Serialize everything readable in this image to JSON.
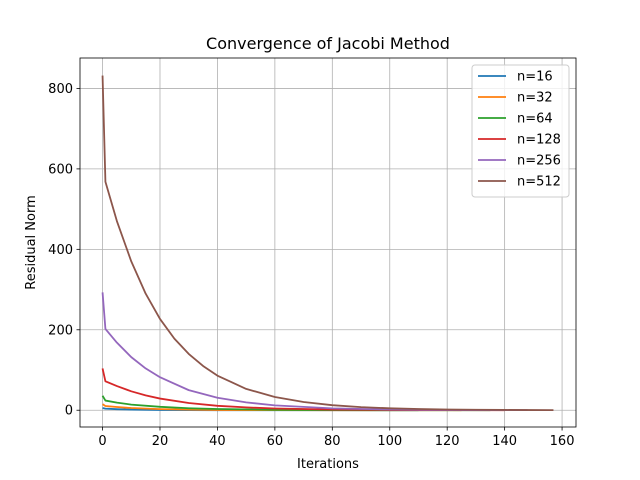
{
  "chart_data": {
    "type": "line",
    "title": "Convergence of Jacobi Method",
    "xlabel": "Iterations",
    "ylabel": "Residual Norm",
    "xlim": [
      -7.85,
      164.85
    ],
    "ylim": [
      -41.7,
      875.7
    ],
    "xticks": [
      0,
      20,
      40,
      60,
      80,
      100,
      120,
      140,
      160
    ],
    "yticks": [
      0,
      200,
      400,
      600,
      800
    ],
    "grid": true,
    "legend_position": "top-right",
    "series": [
      {
        "name": "n=16",
        "color": "#1f77b4",
        "x": [
          0,
          1,
          5,
          10,
          20,
          30,
          40,
          60,
          80,
          100,
          110
        ],
        "y": [
          5.5,
          4.0,
          2.6,
          1.6,
          0.6,
          0.25,
          0.1,
          0.02,
          0.005,
          0.001,
          0.0005
        ]
      },
      {
        "name": "n=32",
        "color": "#ff7f0e",
        "x": [
          0,
          1,
          5,
          10,
          20,
          30,
          40,
          60,
          80,
          100,
          120,
          125
        ],
        "y": [
          15,
          10.5,
          8.0,
          5.5,
          2.8,
          1.4,
          0.7,
          0.18,
          0.05,
          0.012,
          0.003,
          0.002
        ]
      },
      {
        "name": "n=64",
        "color": "#2ca02c",
        "x": [
          0,
          1,
          5,
          10,
          20,
          30,
          40,
          60,
          80,
          100,
          120,
          135
        ],
        "y": [
          36,
          24,
          19,
          14,
          8.5,
          5.0,
          3.0,
          1.05,
          0.36,
          0.12,
          0.04,
          0.02
        ]
      },
      {
        "name": "n=128",
        "color": "#d62728",
        "x": [
          0,
          1,
          5,
          10,
          15,
          20,
          30,
          40,
          50,
          60,
          80,
          100,
          120,
          140
        ],
        "y": [
          104,
          72,
          60,
          47,
          37,
          29,
          18,
          11,
          7,
          4.3,
          1.7,
          0.65,
          0.25,
          0.1
        ]
      },
      {
        "name": "n=256",
        "color": "#9467bd",
        "x": [
          0,
          1,
          5,
          10,
          15,
          20,
          30,
          40,
          50,
          60,
          80,
          100,
          120,
          140,
          148
        ],
        "y": [
          293,
          202,
          168,
          132,
          104,
          82,
          50,
          31,
          19.5,
          12,
          4.6,
          1.8,
          0.7,
          0.27,
          0.2
        ]
      },
      {
        "name": "n=512",
        "color": "#8c564b",
        "x": [
          0,
          1,
          5,
          10,
          15,
          20,
          25,
          30,
          35,
          40,
          50,
          60,
          70,
          80,
          90,
          100,
          110,
          120,
          130,
          140,
          150,
          157
        ],
        "y": [
          832,
          568,
          470,
          370,
          290,
          227,
          178,
          140,
          110,
          86,
          53,
          33,
          20.5,
          12.5,
          7.8,
          4.8,
          3.0,
          1.85,
          1.15,
          0.7,
          0.44,
          0.3
        ]
      }
    ]
  }
}
